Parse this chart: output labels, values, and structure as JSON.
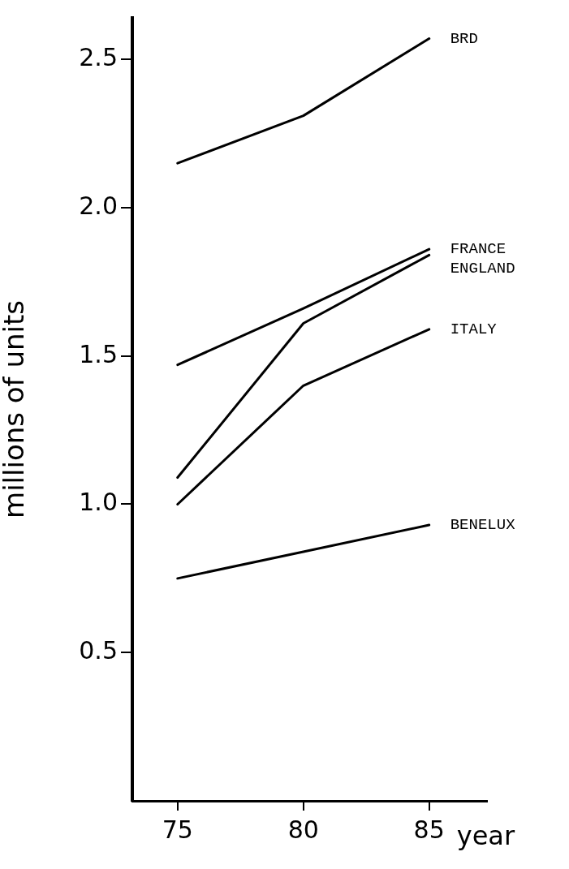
{
  "chart_data": {
    "type": "line",
    "xlabel": "year",
    "ylabel": "millions of units",
    "x": [
      75,
      80,
      85
    ],
    "xlim": [
      73.2,
      87.3
    ],
    "xticks": [
      75,
      80,
      85
    ],
    "ylim": [
      0,
      2.64
    ],
    "yticks": [
      0.5,
      {
        "value": 1,
        "label": "1.0"
      },
      {
        "value": 2,
        "label": "2.0"
      },
      2.5,
      1.5
    ],
    "series": [
      {
        "name": "BRD",
        "color": "#000000",
        "values": [
          2.15,
          2.31,
          2.57
        ]
      },
      {
        "name": "FRANCE",
        "color": "#000000",
        "values": [
          1.47,
          1.66,
          1.86
        ]
      },
      {
        "name": "ENGLAND",
        "color": "#000000",
        "values": [
          1.09,
          1.61,
          1.84
        ]
      },
      {
        "name": "ITALY",
        "color": "#000000",
        "values": [
          1.0,
          1.4,
          1.59
        ]
      },
      {
        "name": "BENELUX",
        "color": "#000000",
        "values": [
          0.75,
          0.84,
          0.93
        ]
      }
    ],
    "grid": false,
    "legend": false,
    "marker": "none",
    "line_style": "solid"
  }
}
